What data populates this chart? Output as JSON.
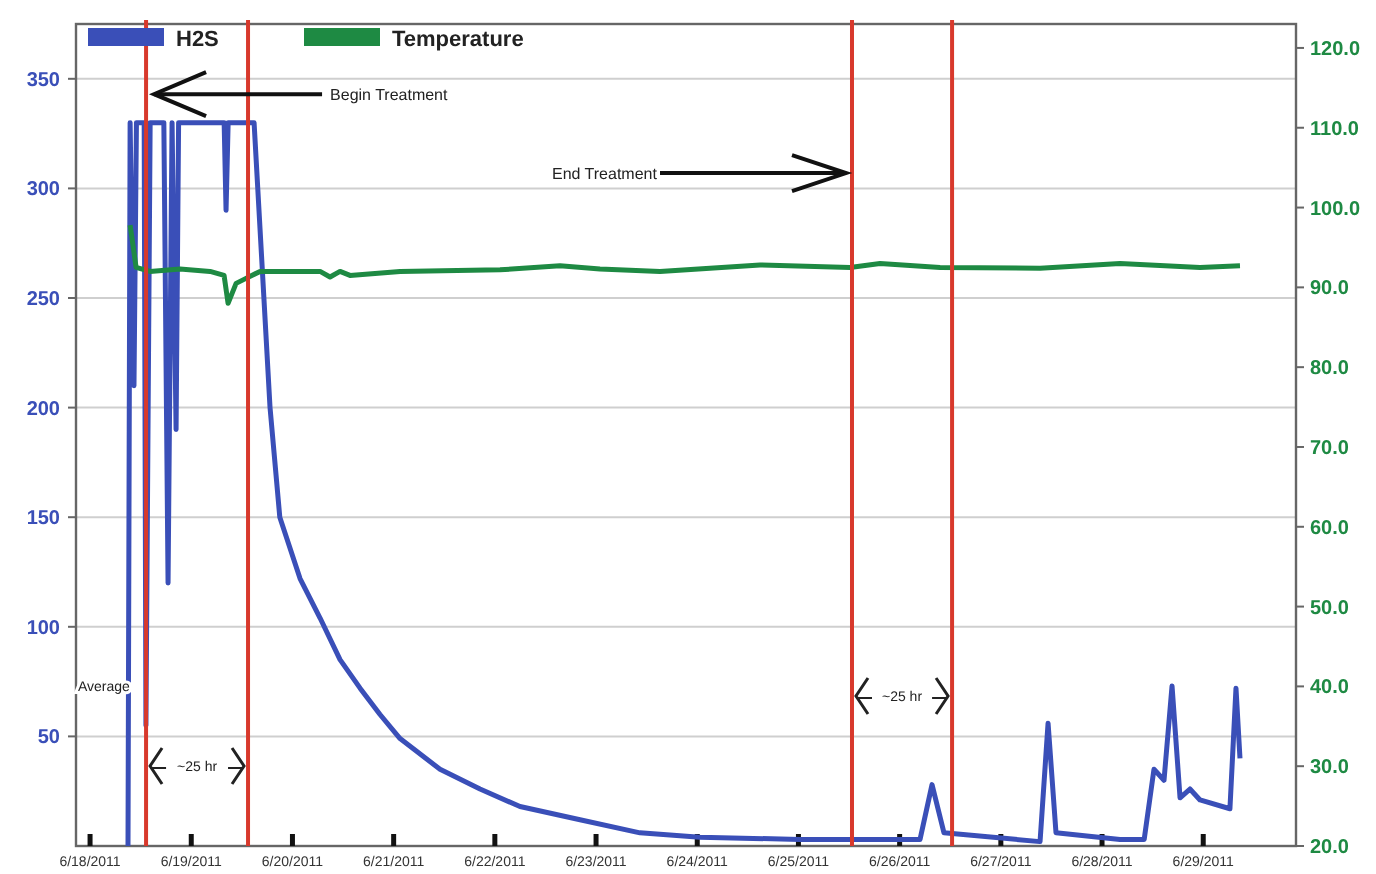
{
  "chart_data": {
    "type": "line",
    "series": [
      {
        "name": "H2S",
        "color": "#3a4fb8",
        "axis": "y",
        "x": [
          "2011-06-18T09:00",
          "2011-06-18T09:30",
          "2011-06-18T10:25",
          "2011-06-18T11:00",
          "2011-06-18T12:50",
          "2011-06-18T13:15",
          "2011-06-18T14:15",
          "2011-06-18T17:30",
          "2011-06-18T18:30",
          "2011-06-18T19:27",
          "2011-06-18T20:24",
          "2011-06-18T21:00",
          "2011-06-19T07:48",
          "2011-06-19T08:15",
          "2011-06-19T08:45",
          "2011-06-19T14:54",
          "2011-06-19T18:41",
          "2011-06-19T21:00",
          "2011-06-20T01:48",
          "2011-06-20T06:33",
          "2011-06-20T11:17",
          "2011-06-20T16:02",
          "2011-06-20T20:46",
          "2011-06-21T01:31",
          "2011-06-21T11:00",
          "2011-06-21T20:29",
          "2011-06-22T05:58",
          "2011-06-22T20:12",
          "2011-06-23T10:25",
          "2011-06-24T00:39",
          "2011-06-25T00:22",
          "2011-06-26T04:50",
          "2011-06-26T07:41",
          "2011-06-26T10:31",
          "2011-06-27T09:18",
          "2011-06-27T11:12",
          "2011-06-27T13:05",
          "2011-06-28T04:16",
          "2011-06-28T10:00",
          "2011-06-28T12:19",
          "2011-06-28T14:42",
          "2011-06-28T16:36",
          "2011-06-28T18:30",
          "2011-06-28T20:51",
          "2011-06-28T23:14",
          "2011-06-29T06:20",
          "2011-06-29T07:46",
          "2011-06-29T08:43"
        ],
        "values": [
          0,
          330,
          210,
          330,
          330,
          55,
          330,
          330,
          120,
          330,
          190,
          330,
          330,
          290,
          330,
          330,
          200,
          150,
          122,
          104,
          85,
          72,
          60,
          49,
          35,
          26,
          18,
          12,
          6,
          4,
          3,
          3,
          28,
          6,
          2,
          56,
          6,
          3,
          3,
          35,
          30,
          73,
          22,
          26,
          21,
          17,
          72,
          40
        ]
      },
      {
        "name": "Temperature",
        "color": "#1e8a43",
        "axis": "y2",
        "x": [
          "2011-06-18T09:30",
          "2011-06-18T10:55",
          "2011-06-18T14:14",
          "2011-06-18T21:20",
          "2011-06-19T04:28",
          "2011-06-19T07:47",
          "2011-06-19T08:44",
          "2011-06-19T10:38",
          "2011-06-19T12:31",
          "2011-06-19T16:19",
          "2011-06-20T06:33",
          "2011-06-20T08:55",
          "2011-06-20T11:17",
          "2011-06-20T13:39",
          "2011-06-21T01:31",
          "2011-06-22T01:14",
          "2011-06-22T15:27",
          "2011-06-23T00:56",
          "2011-06-23T15:10",
          "2011-06-24T14:53",
          "2011-06-25T12:14",
          "2011-06-25T19:21",
          "2011-06-26T09:35",
          "2011-06-27T09:18",
          "2011-06-28T04:16",
          "2011-06-28T23:14",
          "2011-06-29T08:43"
        ],
        "values": [
          97.8,
          92.5,
          92,
          92.3,
          92,
          91.5,
          88,
          90.5,
          91,
          92,
          92,
          91.3,
          92,
          91.5,
          92,
          92.2,
          92.7,
          92.3,
          92,
          92.8,
          92.5,
          93,
          92.5,
          92.4,
          93,
          92.5,
          92.7
        ]
      }
    ],
    "xlim": [
      "2011-06-17T20:40",
      "2011-06-29T22:00"
    ],
    "xticks": [
      {
        "value": "2011-06-18",
        "label": "6/18/2011"
      },
      {
        "value": "2011-06-19",
        "label": "6/19/2011"
      },
      {
        "value": "2011-06-20",
        "label": "6/20/2011"
      },
      {
        "value": "2011-06-21",
        "label": "6/21/2011"
      },
      {
        "value": "2011-06-22",
        "label": "6/22/2011"
      },
      {
        "value": "2011-06-23",
        "label": "6/23/2011"
      },
      {
        "value": "2011-06-24",
        "label": "6/24/2011"
      },
      {
        "value": "2011-06-25",
        "label": "6/25/2011"
      },
      {
        "value": "2011-06-26",
        "label": "6/26/2011"
      },
      {
        "value": "2011-06-27",
        "label": "6/27/2011"
      },
      {
        "value": "2011-06-28",
        "label": "6/28/2011"
      },
      {
        "value": "2011-06-29",
        "label": "6/29/2011"
      }
    ],
    "ylim": [
      0,
      375
    ],
    "yticks": [
      50,
      100,
      150,
      200,
      250,
      300,
      350
    ],
    "y2lim": [
      20,
      123
    ],
    "y2ticks": [
      {
        "value": 20,
        "label": "20.0"
      },
      {
        "value": 30,
        "label": "30.0"
      },
      {
        "value": 40,
        "label": "40.0"
      },
      {
        "value": 50,
        "label": "50.0"
      },
      {
        "value": 60,
        "label": "60.0"
      },
      {
        "value": 70,
        "label": "70.0"
      },
      {
        "value": 80,
        "label": "80.0"
      },
      {
        "value": 90,
        "label": "90.0"
      },
      {
        "value": 100,
        "label": "100.0"
      },
      {
        "value": 110,
        "label": "110.0"
      },
      {
        "value": 120,
        "label": "120.0"
      }
    ],
    "ref_lines": [
      {
        "axis": "x",
        "value": "2011-06-18T13:17",
        "color": "#d8392c"
      },
      {
        "axis": "x",
        "value": "2011-06-19T13:28",
        "color": "#d8392c"
      },
      {
        "axis": "x",
        "value": "2011-06-25T12:42",
        "color": "#d8392c"
      },
      {
        "axis": "x",
        "value": "2011-06-26T12:26",
        "color": "#d8392c"
      }
    ],
    "annotations": [
      {
        "text": "Begin Treatment",
        "x": "2011-06-18T13:17",
        "y": 343
      },
      {
        "text": "End Treatment",
        "x": "2011-06-25T12:42",
        "y": 307
      },
      "Average",
      "~25 hr",
      "~25 hr"
    ],
    "grid": "y",
    "legend": "top left",
    "line_style": "solid",
    "marker": "none"
  }
}
